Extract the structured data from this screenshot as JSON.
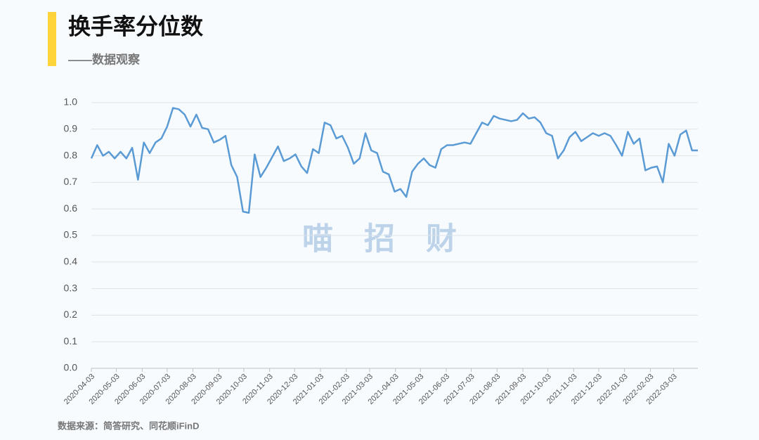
{
  "chart_data": {
    "type": "line",
    "title": "换手率分位数",
    "subtitle": "——数据观察",
    "source": "数据来源：简答研究、同花顺iFinD",
    "watermark": "喵　招　财",
    "x": [
      "2020-04-03",
      "2020-04-10",
      "2020-04-17",
      "2020-04-24",
      "2020-05-01",
      "2020-05-08",
      "2020-05-15",
      "2020-05-22",
      "2020-05-29",
      "2020-06-05",
      "2020-06-12",
      "2020-06-19",
      "2020-06-26",
      "2020-07-03",
      "2020-07-10",
      "2020-07-17",
      "2020-07-24",
      "2020-07-31",
      "2020-08-07",
      "2020-08-14",
      "2020-08-21",
      "2020-08-28",
      "2020-09-04",
      "2020-09-11",
      "2020-09-18",
      "2020-09-25",
      "2020-10-02",
      "2020-10-09",
      "2020-10-16",
      "2020-10-23",
      "2020-10-30",
      "2020-11-06",
      "2020-11-13",
      "2020-11-20",
      "2020-11-27",
      "2020-12-04",
      "2020-12-11",
      "2020-12-18",
      "2020-12-25",
      "2021-01-01",
      "2021-01-08",
      "2021-01-15",
      "2021-01-22",
      "2021-01-29",
      "2021-02-05",
      "2021-02-12",
      "2021-02-19",
      "2021-02-26",
      "2021-03-05",
      "2021-03-12",
      "2021-03-19",
      "2021-03-26",
      "2021-04-02",
      "2021-04-09",
      "2021-04-16",
      "2021-04-23",
      "2021-04-30",
      "2021-05-07",
      "2021-05-14",
      "2021-05-21",
      "2021-05-28",
      "2021-06-04",
      "2021-06-11",
      "2021-06-18",
      "2021-06-25",
      "2021-07-02",
      "2021-07-09",
      "2021-07-16",
      "2021-07-23",
      "2021-07-30",
      "2021-08-06",
      "2021-08-13",
      "2021-08-20",
      "2021-08-27",
      "2021-09-03",
      "2021-09-10",
      "2021-09-17",
      "2021-09-24",
      "2021-10-01",
      "2021-10-08",
      "2021-10-15",
      "2021-10-22",
      "2021-10-29",
      "2021-11-05",
      "2021-11-12",
      "2021-11-19",
      "2021-11-26",
      "2021-12-03",
      "2021-12-10",
      "2021-12-17",
      "2021-12-24",
      "2021-12-31",
      "2022-01-07",
      "2022-01-14",
      "2022-01-21",
      "2022-01-28",
      "2022-02-04",
      "2022-02-11",
      "2022-02-18",
      "2022-02-25",
      "2022-03-04",
      "2022-03-11",
      "2022-03-18",
      "2022-03-25",
      "2022-04-01"
    ],
    "series": [
      {
        "color": "#5b9bd5",
        "values": [
          0.79,
          0.84,
          0.8,
          0.815,
          0.79,
          0.815,
          0.79,
          0.83,
          0.71,
          0.85,
          0.81,
          0.85,
          0.865,
          0.91,
          0.98,
          0.975,
          0.955,
          0.91,
          0.955,
          0.905,
          0.9,
          0.85,
          0.86,
          0.875,
          0.765,
          0.72,
          0.59,
          0.585,
          0.805,
          0.72,
          0.755,
          0.795,
          0.835,
          0.78,
          0.79,
          0.805,
          0.76,
          0.735,
          0.825,
          0.81,
          0.925,
          0.915,
          0.865,
          0.875,
          0.83,
          0.77,
          0.79,
          0.885,
          0.82,
          0.81,
          0.74,
          0.73,
          0.665,
          0.675,
          0.645,
          0.74,
          0.77,
          0.79,
          0.765,
          0.755,
          0.825,
          0.84,
          0.84,
          0.845,
          0.85,
          0.845,
          0.885,
          0.925,
          0.915,
          0.95,
          0.94,
          0.935,
          0.93,
          0.935,
          0.96,
          0.94,
          0.945,
          0.925,
          0.885,
          0.875,
          0.79,
          0.82,
          0.87,
          0.89,
          0.855,
          0.87,
          0.885,
          0.875,
          0.885,
          0.875,
          0.84,
          0.8,
          0.89,
          0.845,
          0.865,
          0.745,
          0.755,
          0.76,
          0.7,
          0.845,
          0.8,
          0.88,
          0.895,
          0.82,
          0.82
        ]
      }
    ],
    "xlim": [
      "2020-04-03",
      "2022-04-01"
    ],
    "xticks": [
      "2020-04-03",
      "2020-05-03",
      "2020-06-03",
      "2020-07-03",
      "2020-08-03",
      "2020-09-03",
      "2020-10-03",
      "2020-11-03",
      "2020-12-03",
      "2021-01-03",
      "2021-02-03",
      "2021-03-03",
      "2021-04-03",
      "2021-05-03",
      "2021-06-03",
      "2021-07-03",
      "2021-08-03",
      "2021-09-03",
      "2021-10-03",
      "2021-11-03",
      "2021-12-03",
      "2022-01-03",
      "2022-02-03",
      "2022-03-03"
    ],
    "ylim": [
      0,
      1
    ],
    "yticks": [
      {
        "value": 0,
        "label": "0.0"
      },
      0.1,
      0.2,
      0.3,
      0.4,
      0.5,
      0.6,
      0.7,
      0.8,
      0.9,
      {
        "value": 1,
        "label": "1.0"
      }
    ],
    "grid": true
  }
}
